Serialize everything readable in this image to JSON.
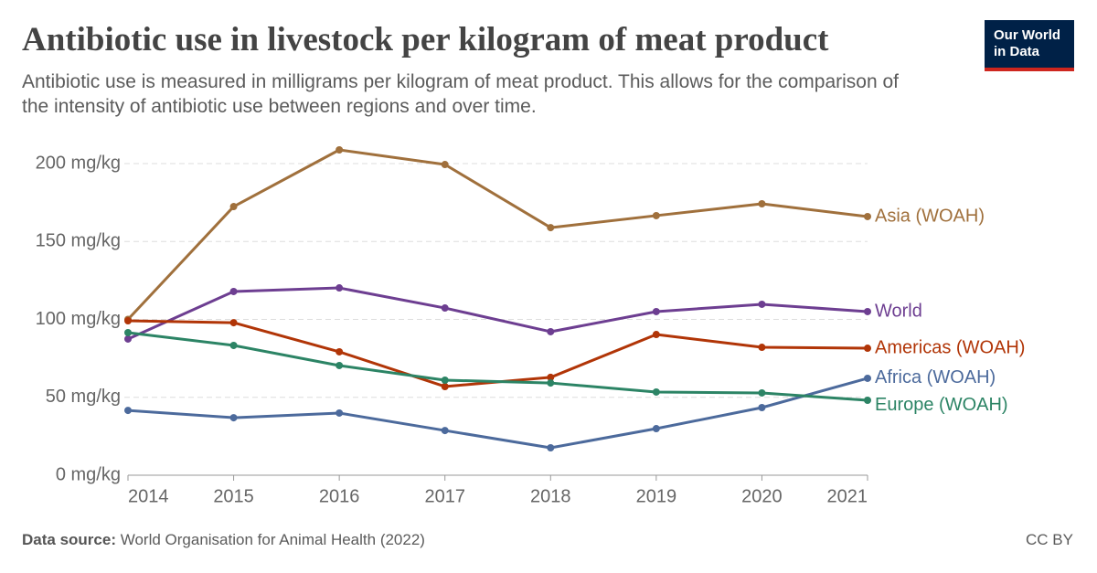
{
  "chart_data": {
    "type": "line",
    "title": "Antibiotic use in livestock per kilogram of meat product",
    "subtitle": "Antibiotic use is measured in milligrams per kilogram of meat product. This allows for the comparison of the intensity of antibiotic use between regions and over time.",
    "logo": "Our World in Data",
    "source_label": "Data source:",
    "source": "World Organisation for Animal Health (2022)",
    "license": "CC BY",
    "x": [
      2014,
      2015,
      2016,
      2017,
      2018,
      2019,
      2020,
      2021
    ],
    "xlim": [
      2014,
      2021
    ],
    "xticks": [
      2014,
      2015,
      2016,
      2017,
      2018,
      2019,
      2020,
      2021
    ],
    "ylim": [
      0,
      200
    ],
    "yticks": [
      {
        "value": 0,
        "label": "0 mg/kg"
      },
      {
        "value": 50,
        "label": "50 mg/kg"
      },
      {
        "value": 100,
        "label": "100 mg/kg"
      },
      {
        "value": 150,
        "label": "150 mg/kg"
      },
      {
        "value": 200,
        "label": "200 mg/kg"
      }
    ],
    "grid": true,
    "series": [
      {
        "name": "Asia (WOAH)",
        "color": "#a0703c",
        "values": [
          100,
          172.4,
          208.8,
          199.4,
          158.9,
          166.6,
          174.2,
          166
        ]
      },
      {
        "name": "World",
        "color": "#6d3e91",
        "values": [
          87.4,
          117.9,
          120.2,
          107.3,
          92.1,
          105,
          109.7,
          105
        ]
      },
      {
        "name": "Americas (WOAH)",
        "color": "#b13507",
        "values": [
          99.1,
          97.9,
          79.2,
          56.9,
          62.8,
          90.3,
          82.1,
          81.5
        ]
      },
      {
        "name": "Africa (WOAH)",
        "color": "#4c6a9c",
        "values": [
          41.6,
          36.9,
          39.9,
          28.7,
          17.6,
          29.9,
          43.4,
          62.2
        ]
      },
      {
        "name": "Europe (WOAH)",
        "color": "#2c8465",
        "values": [
          91.5,
          83.3,
          70.4,
          61,
          59.2,
          53.4,
          52.8,
          48.1
        ]
      }
    ]
  }
}
